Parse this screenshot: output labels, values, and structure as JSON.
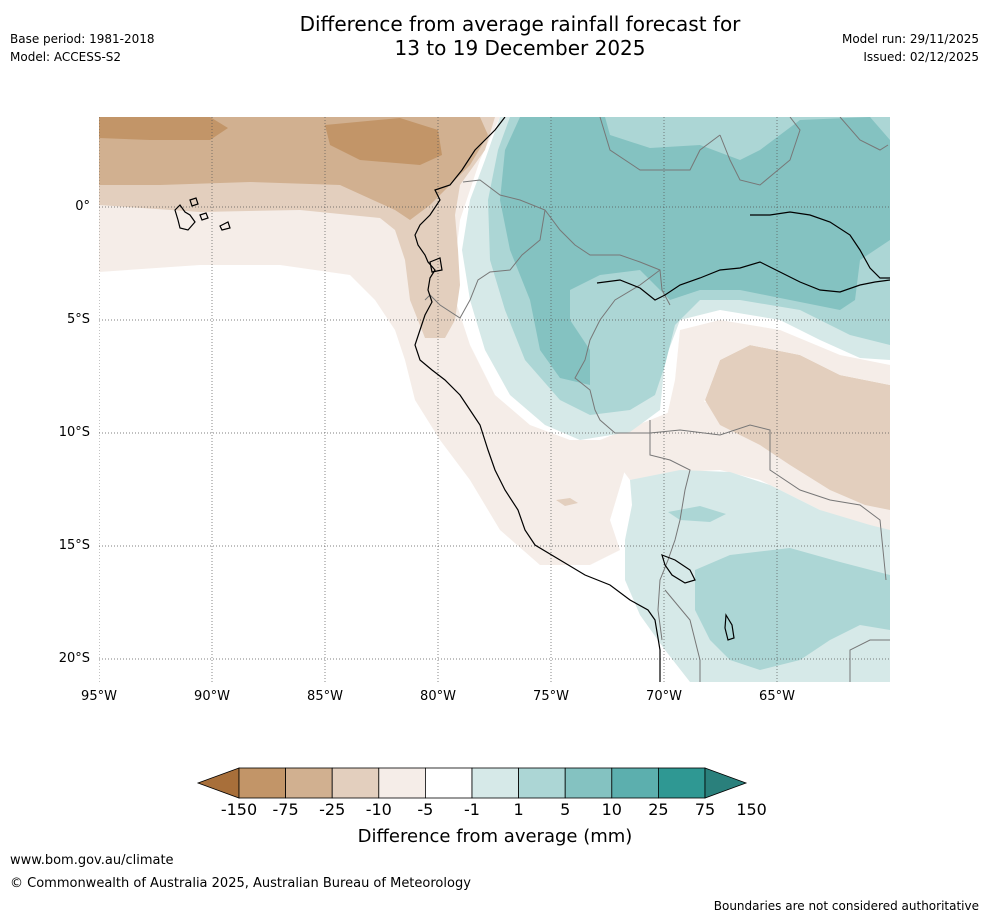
{
  "header": {
    "title_line1": "Difference from average rainfall forecast for",
    "title_line2": "13 to 19 December 2025",
    "base_period": "Base period: 1981-2018",
    "model": "Model: ACCESS-S2",
    "model_run": "Model run: 29/11/2025",
    "issued": "Issued: 02/12/2025"
  },
  "map": {
    "region": "Western South America",
    "lon_range": [
      -95,
      -60
    ],
    "lat_range": [
      -21,
      4
    ],
    "lat_labels": [
      "0°",
      "5°S",
      "10°S",
      "15°S",
      "20°S"
    ],
    "lon_labels": [
      "95°W",
      "90°W",
      "85°W",
      "80°W",
      "75°W",
      "70°W",
      "65°W"
    ]
  },
  "legend": {
    "title": "Difference from average (mm)",
    "tick_labels": [
      "-150",
      "-75",
      "-25",
      "-10",
      "-5",
      "-1",
      "1",
      "5",
      "10",
      "25",
      "75",
      "150"
    ],
    "colors": [
      "#a86f3a",
      "#c29568",
      "#d1b090",
      "#e3cfbe",
      "#f5ede8",
      "#ffffff",
      "#d6e9e8",
      "#acd6d5",
      "#84c2c1",
      "#5cafae",
      "#2f9893",
      "#2a807c"
    ]
  },
  "footer": {
    "website": "www.bom.gov.au/climate",
    "copyright": "© Commonwealth of Australia 2025, Australian Bureau of Meteorology",
    "disclaimer": "Boundaries are not considered authoritative"
  }
}
